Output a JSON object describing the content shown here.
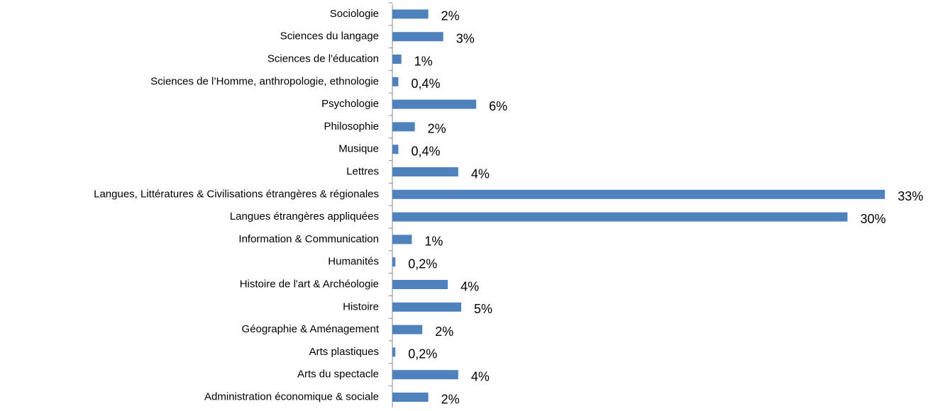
{
  "chart_data": {
    "type": "barh",
    "categories": [
      "Sociologie",
      "Sciences du langage",
      "Sciences de l'éducation",
      "Sciences de l’Homme, anthropologie, ethnologie",
      "Psychologie",
      "Philosophie",
      "Musique",
      "Lettres",
      "Langues, Littératures & Civilisations étrangères & régionales",
      "Langues étrangères appliquées",
      "Information & Communication",
      "Humanités",
      "Histoire de l'art & Archéologie",
      "Histoire",
      "Géographie & Aménagement",
      "Arts plastiques",
      "Arts du spectacle",
      "Administration économique & sociale"
    ],
    "values": [
      2.4,
      3.4,
      0.6,
      0.4,
      5.6,
      1.5,
      0.4,
      4.4,
      32.9,
      30.4,
      1.3,
      0.2,
      3.7,
      4.6,
      2.0,
      0.2,
      4.4,
      2.4
    ],
    "value_labels": [
      "2%",
      "3%",
      "1%",
      "0,4%",
      "6%",
      "2%",
      "0,4%",
      "4%",
      "33%",
      "30%",
      "1%",
      "0,2%",
      "4%",
      "5%",
      "2%",
      "0,2%",
      "4%",
      "2%"
    ],
    "color": "#4f81bd",
    "grid": false
  }
}
